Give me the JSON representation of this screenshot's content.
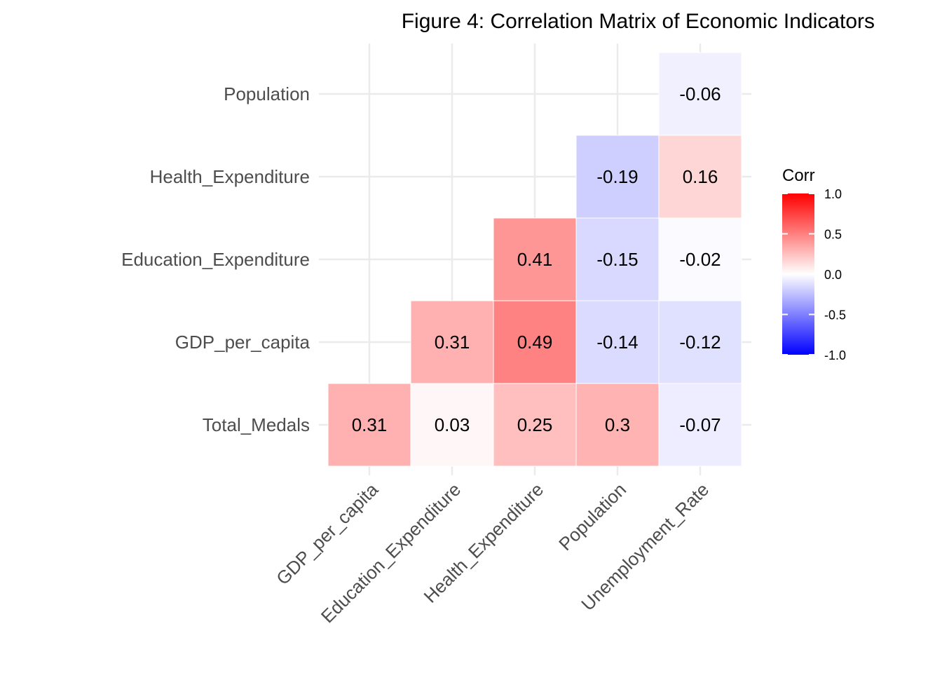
{
  "chart_data": {
    "type": "heatmap",
    "title": "Figure 4: Correlation Matrix of Economic Indicators",
    "x_categories": [
      "GDP_per_capita",
      "Education_Expenditure",
      "Health_Expenditure",
      "Population",
      "Unemployment_Rate"
    ],
    "y_categories": [
      "Total_Medals",
      "GDP_per_capita",
      "Education_Expenditure",
      "Health_Expenditure",
      "Population"
    ],
    "cells": [
      {
        "x": "GDP_per_capita",
        "y": "Total_Medals",
        "value": 0.31,
        "label": "0.31"
      },
      {
        "x": "Education_Expenditure",
        "y": "Total_Medals",
        "value": 0.03,
        "label": "0.03"
      },
      {
        "x": "Health_Expenditure",
        "y": "Total_Medals",
        "value": 0.25,
        "label": "0.25"
      },
      {
        "x": "Population",
        "y": "Total_Medals",
        "value": 0.3,
        "label": "0.3"
      },
      {
        "x": "Unemployment_Rate",
        "y": "Total_Medals",
        "value": -0.07,
        "label": "-0.07"
      },
      {
        "x": "Education_Expenditure",
        "y": "GDP_per_capita",
        "value": 0.31,
        "label": "0.31"
      },
      {
        "x": "Health_Expenditure",
        "y": "GDP_per_capita",
        "value": 0.49,
        "label": "0.49"
      },
      {
        "x": "Population",
        "y": "GDP_per_capita",
        "value": -0.14,
        "label": "-0.14"
      },
      {
        "x": "Unemployment_Rate",
        "y": "GDP_per_capita",
        "value": -0.12,
        "label": "-0.12"
      },
      {
        "x": "Health_Expenditure",
        "y": "Education_Expenditure",
        "value": 0.41,
        "label": "0.41"
      },
      {
        "x": "Population",
        "y": "Education_Expenditure",
        "value": -0.15,
        "label": "-0.15"
      },
      {
        "x": "Unemployment_Rate",
        "y": "Education_Expenditure",
        "value": -0.02,
        "label": "-0.02"
      },
      {
        "x": "Population",
        "y": "Health_Expenditure",
        "value": -0.19,
        "label": "-0.19"
      },
      {
        "x": "Unemployment_Rate",
        "y": "Health_Expenditure",
        "value": 0.16,
        "label": "0.16"
      },
      {
        "x": "Unemployment_Rate",
        "y": "Population",
        "value": -0.06,
        "label": "-0.06"
      }
    ],
    "legend": {
      "title": "Corr",
      "position": "right",
      "limits": [
        -1.0,
        1.0
      ],
      "ticks": [
        "1.0",
        "0.5",
        "0.0",
        "-0.5",
        "-1.0"
      ],
      "colors": {
        "low": "#0000FF",
        "mid": "#FFFFFF",
        "high": "#FF0000"
      }
    },
    "grid": true
  }
}
